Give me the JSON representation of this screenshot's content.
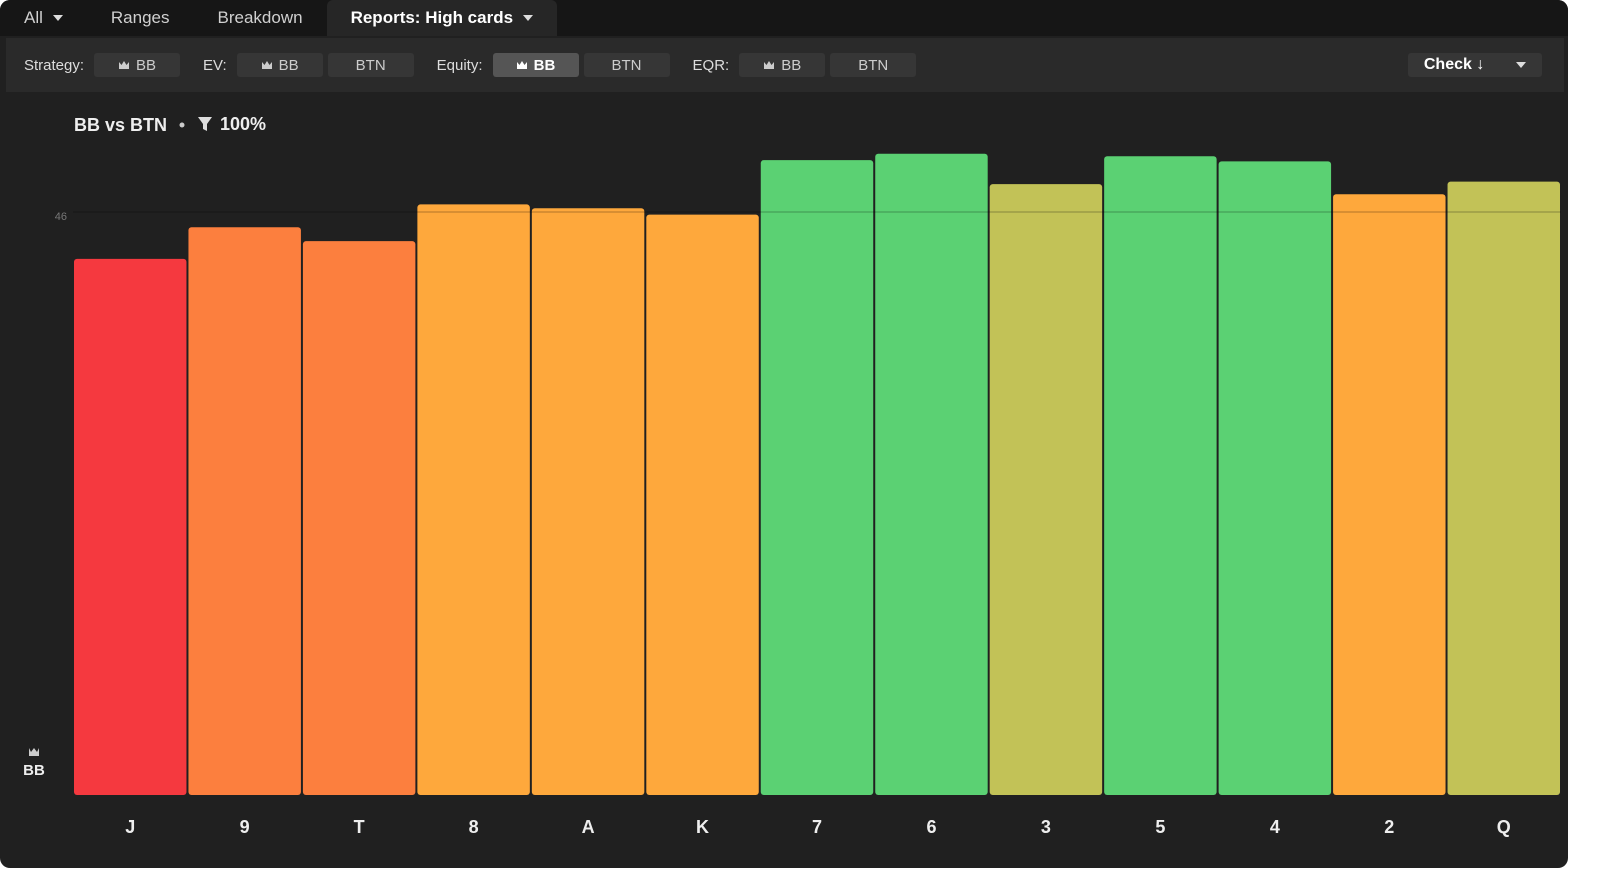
{
  "tabs": [
    {
      "label": "All",
      "dropdown": true,
      "selected": false
    },
    {
      "label": "Ranges",
      "dropdown": false,
      "selected": false
    },
    {
      "label": "Breakdown",
      "dropdown": false,
      "selected": false
    },
    {
      "label": "Reports: High cards",
      "dropdown": true,
      "selected": true
    }
  ],
  "toolbar": {
    "groups": [
      {
        "label": "Strategy:",
        "options": [
          {
            "label": "BB",
            "icon": "crown",
            "selected": false
          }
        ]
      },
      {
        "label": "EV:",
        "options": [
          {
            "label": "BB",
            "icon": "crown",
            "selected": false
          },
          {
            "label": "BTN",
            "icon": null,
            "selected": false
          }
        ]
      },
      {
        "label": "Equity:",
        "options": [
          {
            "label": "BB",
            "icon": "crown",
            "selected": true
          },
          {
            "label": "BTN",
            "icon": null,
            "selected": false
          }
        ]
      },
      {
        "label": "EQR:",
        "options": [
          {
            "label": "BB",
            "icon": "crown",
            "selected": false
          },
          {
            "label": "BTN",
            "icon": null,
            "selected": false
          }
        ]
      }
    ],
    "action": "Check ↓"
  },
  "chart_data": {
    "type": "bar",
    "title": "BB vs BTN",
    "filter": "100%",
    "player": "BB",
    "categories": [
      "J",
      "9",
      "T",
      "8",
      "A",
      "K",
      "7",
      "6",
      "3",
      "5",
      "4",
      "2",
      "Q"
    ],
    "values": [
      42.3,
      44.8,
      43.7,
      46.6,
      46.3,
      45.8,
      50.1,
      50.6,
      48.2,
      50.4,
      50.0,
      47.4,
      48.4
    ],
    "colors": [
      "#f5393f",
      "#fc7f3e",
      "#fc7f3e",
      "#fea83c",
      "#fea83c",
      "#fea83c",
      "#5bd173",
      "#5bd173",
      "#c2c257",
      "#5bd173",
      "#5bd173",
      "#fea83c",
      "#c2c257"
    ],
    "ylim": [
      0,
      52
    ],
    "yticks": [
      46
    ],
    "grid": true
  }
}
